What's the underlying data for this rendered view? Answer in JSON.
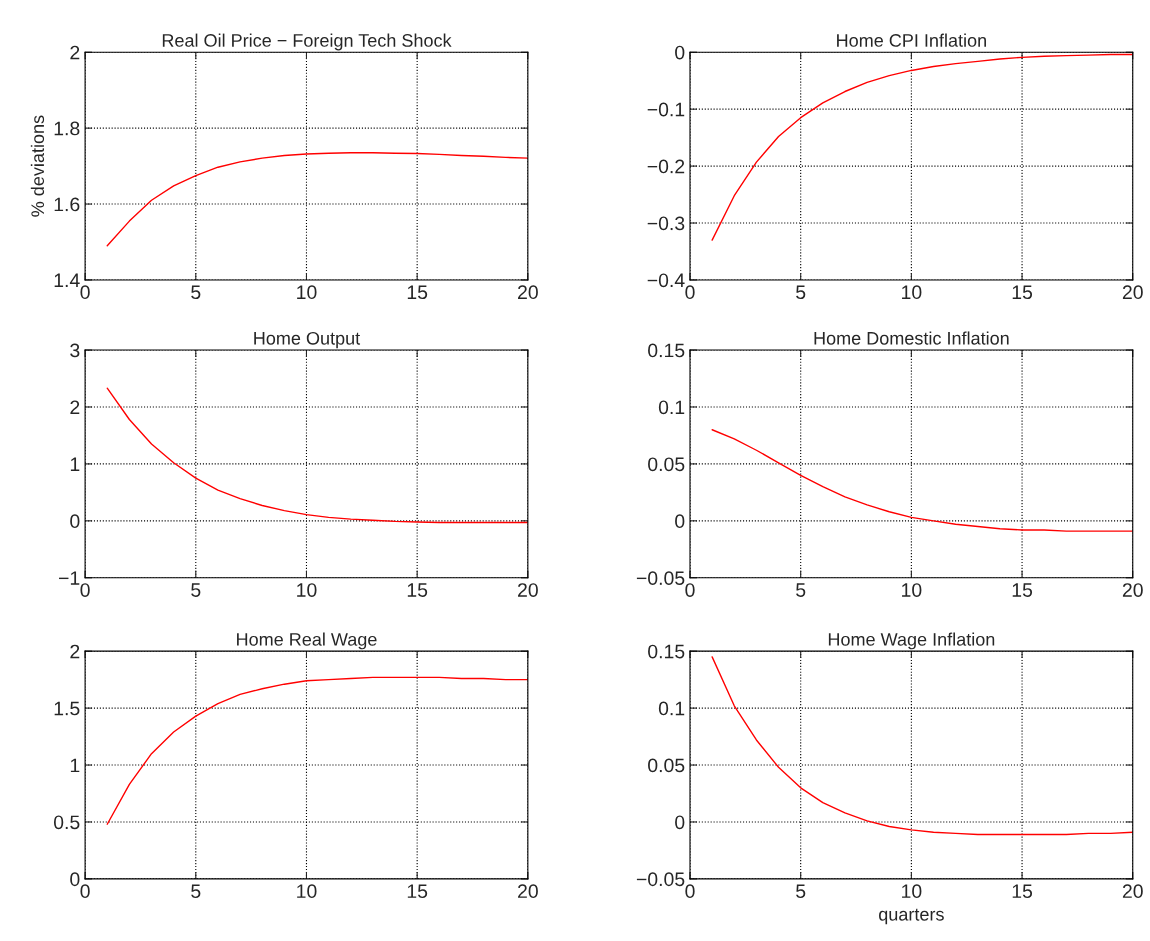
{
  "chart_data": [
    {
      "type": "line",
      "title": "Real Oil Price − Foreign Tech Shock",
      "ylabel": "% deviations",
      "x": [
        1,
        2,
        3,
        4,
        5,
        6,
        7,
        8,
        9,
        10,
        11,
        12,
        13,
        14,
        15,
        16,
        17,
        18,
        19,
        20
      ],
      "series": [
        {
          "color": "#ff0000",
          "values": [
            1.49,
            1.555,
            1.61,
            1.648,
            1.675,
            1.697,
            1.711,
            1.721,
            1.728,
            1.732,
            1.734,
            1.735,
            1.735,
            1.734,
            1.733,
            1.731,
            1.728,
            1.726,
            1.723,
            1.721
          ]
        }
      ],
      "xlim": [
        0,
        20
      ],
      "xticks": [
        0,
        5,
        10,
        15,
        20
      ],
      "ylim": [
        1.4,
        2
      ],
      "yticks": [
        1.4,
        1.6,
        1.8,
        2
      ],
      "grid": true,
      "line_style": "solid",
      "marker": "none"
    },
    {
      "type": "line",
      "title": "Home CPI Inflation",
      "x": [
        1,
        2,
        3,
        4,
        5,
        6,
        7,
        8,
        9,
        10,
        11,
        12,
        13,
        14,
        15,
        16,
        17,
        18,
        19,
        20
      ],
      "series": [
        {
          "color": "#ff0000",
          "values": [
            -0.33,
            -0.252,
            -0.193,
            -0.148,
            -0.115,
            -0.089,
            -0.069,
            -0.053,
            -0.041,
            -0.032,
            -0.025,
            -0.02,
            -0.016,
            -0.012,
            -0.009,
            -0.007,
            -0.006,
            -0.005,
            -0.004,
            -0.004
          ]
        }
      ],
      "xlim": [
        0,
        20
      ],
      "xticks": [
        0,
        5,
        10,
        15,
        20
      ],
      "ylim": [
        -0.4,
        0
      ],
      "yticks": [
        {
          "value": -0.4,
          "label": "−0.4"
        },
        {
          "value": -0.3,
          "label": "−0.3"
        },
        {
          "value": -0.2,
          "label": "−0.2"
        },
        {
          "value": -0.1,
          "label": "−0.1"
        },
        0
      ],
      "grid": true,
      "line_style": "solid",
      "marker": "none"
    },
    {
      "type": "line",
      "title": "Home Output",
      "x": [
        1,
        2,
        3,
        4,
        5,
        6,
        7,
        8,
        9,
        10,
        11,
        12,
        13,
        14,
        15,
        16,
        17,
        18,
        19,
        20
      ],
      "series": [
        {
          "color": "#ff0000",
          "values": [
            2.33,
            1.78,
            1.35,
            1.02,
            0.75,
            0.54,
            0.39,
            0.27,
            0.18,
            0.11,
            0.06,
            0.03,
            0.01,
            -0.01,
            -0.02,
            -0.03,
            -0.03,
            -0.03,
            -0.03,
            -0.03
          ]
        }
      ],
      "xlim": [
        0,
        20
      ],
      "xticks": [
        0,
        5,
        10,
        15,
        20
      ],
      "ylim": [
        -1,
        3
      ],
      "yticks": [
        {
          "value": -1,
          "label": "−1"
        },
        0,
        1,
        2,
        3
      ],
      "grid": true,
      "line_style": "solid",
      "marker": "none"
    },
    {
      "type": "line",
      "title": "Home Domestic Inflation",
      "x": [
        1,
        2,
        3,
        4,
        5,
        6,
        7,
        8,
        9,
        10,
        11,
        12,
        13,
        14,
        15,
        16,
        17,
        18,
        19,
        20
      ],
      "series": [
        {
          "color": "#ff0000",
          "values": [
            0.08,
            0.072,
            0.062,
            0.051,
            0.04,
            0.03,
            0.021,
            0.014,
            0.008,
            0.003,
            0.0,
            -0.003,
            -0.005,
            -0.007,
            -0.008,
            -0.008,
            -0.009,
            -0.009,
            -0.009,
            -0.009
          ]
        }
      ],
      "xlim": [
        0,
        20
      ],
      "xticks": [
        0,
        5,
        10,
        15,
        20
      ],
      "ylim": [
        -0.05,
        0.15
      ],
      "yticks": [
        {
          "value": -0.05,
          "label": "−0.05"
        },
        0,
        0.05,
        0.1,
        0.15
      ],
      "grid": true,
      "line_style": "solid",
      "marker": "none"
    },
    {
      "type": "line",
      "title": "Home Real Wage",
      "x": [
        1,
        2,
        3,
        4,
        5,
        6,
        7,
        8,
        9,
        10,
        11,
        12,
        13,
        14,
        15,
        16,
        17,
        18,
        19,
        20
      ],
      "series": [
        {
          "color": "#ff0000",
          "values": [
            0.48,
            0.83,
            1.1,
            1.29,
            1.43,
            1.54,
            1.62,
            1.67,
            1.71,
            1.74,
            1.75,
            1.76,
            1.77,
            1.77,
            1.77,
            1.77,
            1.76,
            1.76,
            1.75,
            1.75
          ]
        }
      ],
      "xlim": [
        0,
        20
      ],
      "xticks": [
        0,
        5,
        10,
        15,
        20
      ],
      "ylim": [
        0,
        2
      ],
      "yticks": [
        0,
        0.5,
        1,
        1.5,
        2
      ],
      "grid": true,
      "line_style": "solid",
      "marker": "none"
    },
    {
      "type": "line",
      "title": "Home Wage Inflation",
      "xlabel": "quarters",
      "x": [
        1,
        2,
        3,
        4,
        5,
        6,
        7,
        8,
        9,
        10,
        11,
        12,
        13,
        14,
        15,
        16,
        17,
        18,
        19,
        20
      ],
      "series": [
        {
          "color": "#ff0000",
          "values": [
            0.145,
            0.102,
            0.072,
            0.048,
            0.03,
            0.017,
            0.008,
            0.001,
            -0.004,
            -0.007,
            -0.009,
            -0.01,
            -0.011,
            -0.011,
            -0.011,
            -0.011,
            -0.011,
            -0.01,
            -0.01,
            -0.009
          ]
        }
      ],
      "xlim": [
        0,
        20
      ],
      "xticks": [
        0,
        5,
        10,
        15,
        20
      ],
      "ylim": [
        -0.05,
        0.15
      ],
      "yticks": [
        {
          "value": -0.05,
          "label": "−0.05"
        },
        0,
        0.05,
        0.1,
        0.15
      ],
      "grid": true,
      "line_style": "solid",
      "marker": "none"
    }
  ]
}
